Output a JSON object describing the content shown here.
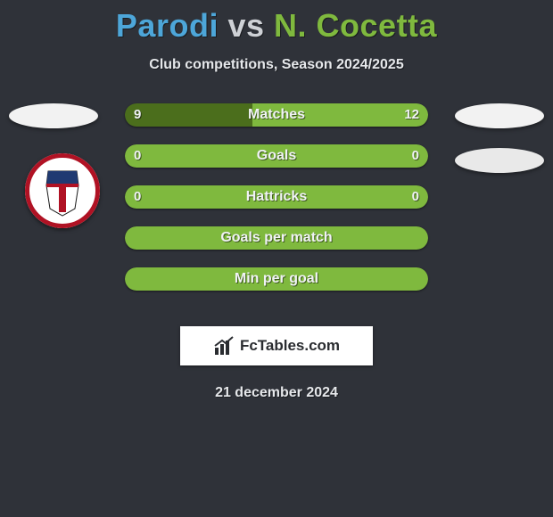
{
  "title": {
    "player1": "Parodi",
    "vs": "vs",
    "player2": "N. Cocetta"
  },
  "subtitle": "Club competitions, Season 2024/2025",
  "date": "21 december 2024",
  "brand": "FcTables.com",
  "colors": {
    "player1": "#4da6d9",
    "player2": "#7fb93e",
    "bar_base": "#7fb93e",
    "bar_deep": "#4b6e1c",
    "background": "#2f3239"
  },
  "club_badge": {
    "ring": "#b01224",
    "top": "#203a72",
    "bottom": "#ffffff",
    "stripe": "#b01224"
  },
  "bars": [
    {
      "label": "Matches",
      "left_val": "9",
      "right_val": "12",
      "left_pct": 42,
      "right_pct": 58,
      "left_color": "#4b6e1c",
      "right_color": "#7fb93e"
    },
    {
      "label": "Goals",
      "left_val": "0",
      "right_val": "0",
      "left_pct": 50,
      "right_pct": 50,
      "left_color": "#7fb93e",
      "right_color": "#7fb93e"
    },
    {
      "label": "Hattricks",
      "left_val": "0",
      "right_val": "0",
      "left_pct": 50,
      "right_pct": 50,
      "left_color": "#7fb93e",
      "right_color": "#7fb93e"
    },
    {
      "label": "Goals per match",
      "left_val": "",
      "right_val": "",
      "left_pct": 50,
      "right_pct": 50,
      "left_color": "#7fb93e",
      "right_color": "#7fb93e"
    },
    {
      "label": "Min per goal",
      "left_val": "",
      "right_val": "",
      "left_pct": 50,
      "right_pct": 50,
      "left_color": "#7fb93e",
      "right_color": "#7fb93e"
    }
  ]
}
